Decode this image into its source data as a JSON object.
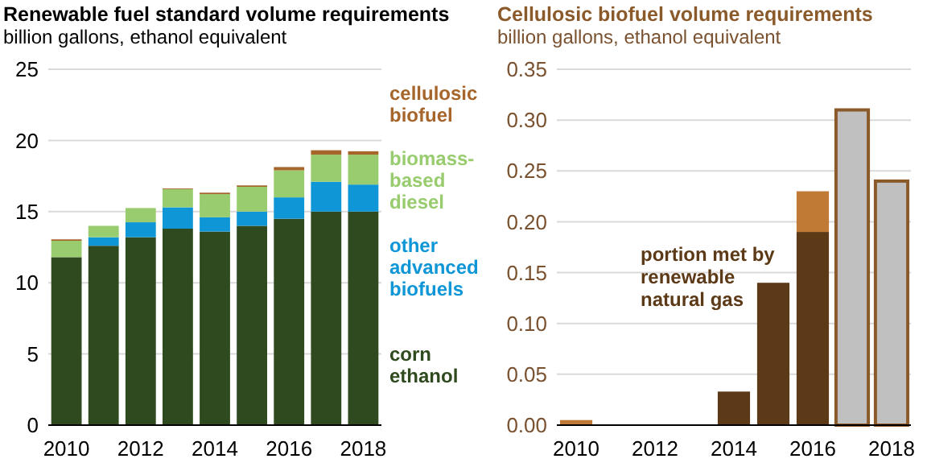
{
  "chart_data": [
    {
      "type": "bar",
      "title": "Renewable fuel standard volume requirements",
      "subtitle": "billion gallons, ethanol equivalent",
      "categories": [
        "2010",
        null,
        "2012",
        null,
        "2014",
        null,
        "2016",
        null,
        "2018"
      ],
      "stacked": true,
      "ylim": [
        0,
        25
      ],
      "yticks": [
        0,
        5,
        10,
        15,
        20,
        25
      ],
      "grid": "y",
      "legend": "right",
      "series": [
        {
          "name": "corn ethanol",
          "color": "#2f4a1e",
          "values": [
            11.8,
            12.6,
            13.2,
            13.8,
            13.6,
            14.0,
            14.5,
            15.0,
            15.0
          ]
        },
        {
          "name": "other advanced biofuels",
          "color": "#0f96d6",
          "values": [
            0,
            0.6,
            1.05,
            1.5,
            1.0,
            1.0,
            1.5,
            2.1,
            1.9
          ]
        },
        {
          "name": "biomass-based diesel",
          "color": "#98cc6e",
          "values": [
            1.15,
            0.8,
            1.0,
            1.28,
            1.63,
            1.74,
            1.9,
            1.9,
            2.1
          ]
        },
        {
          "name": "cellulosic biofuel",
          "color": "#a6662b",
          "values": [
            0.1,
            0,
            0,
            0.05,
            0.1,
            0.1,
            0.23,
            0.31,
            0.24
          ]
        }
      ]
    },
    {
      "type": "bar",
      "title": "Cellulosic biofuel volume requirements",
      "subtitle": "billion gallons, ethanol equivalent",
      "categories": [
        "2010",
        null,
        "2012",
        null,
        "2014",
        null,
        "2016",
        null,
        "2018"
      ],
      "stacked": true,
      "ylim": [
        0,
        0.35
      ],
      "yticks": [
        {
          "value": 0,
          "label": "0.00"
        },
        {
          "value": 0.05,
          "label": "0.05"
        },
        {
          "value": 0.1,
          "label": "0.10"
        },
        {
          "value": 0.15,
          "label": "0.15"
        },
        {
          "value": 0.2,
          "label": "0.20"
        },
        {
          "value": 0.25,
          "label": "0.25"
        },
        {
          "value": 0.3,
          "label": "0.30"
        },
        {
          "value": 0.35,
          "label": "0.35"
        }
      ],
      "grid": "y",
      "annotations": [
        "portion met by renewable natural gas"
      ],
      "series": [
        {
          "color": "#5c3a17",
          "values": [
            0,
            0,
            0,
            0,
            0.033,
            0.14,
            0.19,
            0,
            0
          ]
        },
        {
          "color": "#c07a35",
          "values": [
            0.005,
            0,
            0,
            0,
            0,
            0,
            0.04,
            0,
            0
          ]
        },
        {
          "color": "#c0c0c0",
          "values": [
            0,
            0,
            0,
            0,
            0,
            0,
            0,
            0.31,
            0.24
          ]
        }
      ]
    }
  ]
}
